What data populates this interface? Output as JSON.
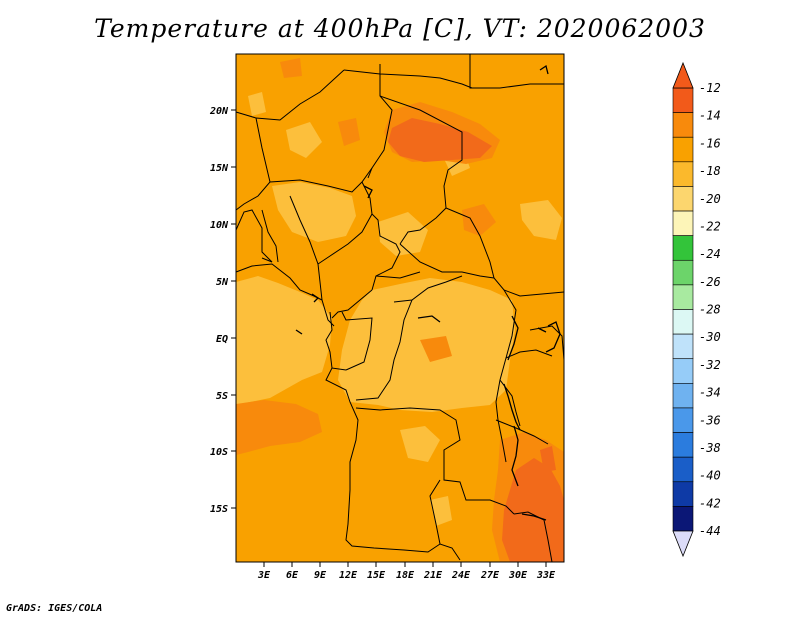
{
  "title": "Temperature at 400hPa [C], VT: 2020062003",
  "credit": "GrADS: IGES/COLA",
  "map": {
    "lat_labels": [
      "20N",
      "15N",
      "10N",
      "5N",
      "EQ",
      "5S",
      "10S",
      "15S"
    ],
    "lon_labels": [
      "3E",
      "6E",
      "9E",
      "12E",
      "15E",
      "18E",
      "21E",
      "24E",
      "27E",
      "30E",
      "33E"
    ],
    "colors": {
      "base": "#f9a100",
      "light": "#fcbf3c",
      "dark": "#f88a0c",
      "darker": "#f26a1a",
      "coast": "#000000"
    }
  },
  "colorbar": {
    "labels": [
      "-12",
      "-14",
      "-16",
      "-18",
      "-20",
      "-22",
      "-24",
      "-26",
      "-28",
      "-30",
      "-32",
      "-34",
      "-36",
      "-38",
      "-40",
      "-42",
      "-44"
    ],
    "colors": [
      "#f25a1a",
      "#f88a0c",
      "#f9a100",
      "#fbb92c",
      "#fcd66e",
      "#fdf5b8",
      "#33c43a",
      "#6cd46a",
      "#a8eaa0",
      "#dcf8f4",
      "#bfe2fa",
      "#96ccf8",
      "#6fb2f0",
      "#4a98ea",
      "#2b7cde",
      "#1a5ec8",
      "#0e3aa6",
      "#0b1776"
    ],
    "top_color": "#f25a1a",
    "bottom_color": "#dcdcf8"
  }
}
